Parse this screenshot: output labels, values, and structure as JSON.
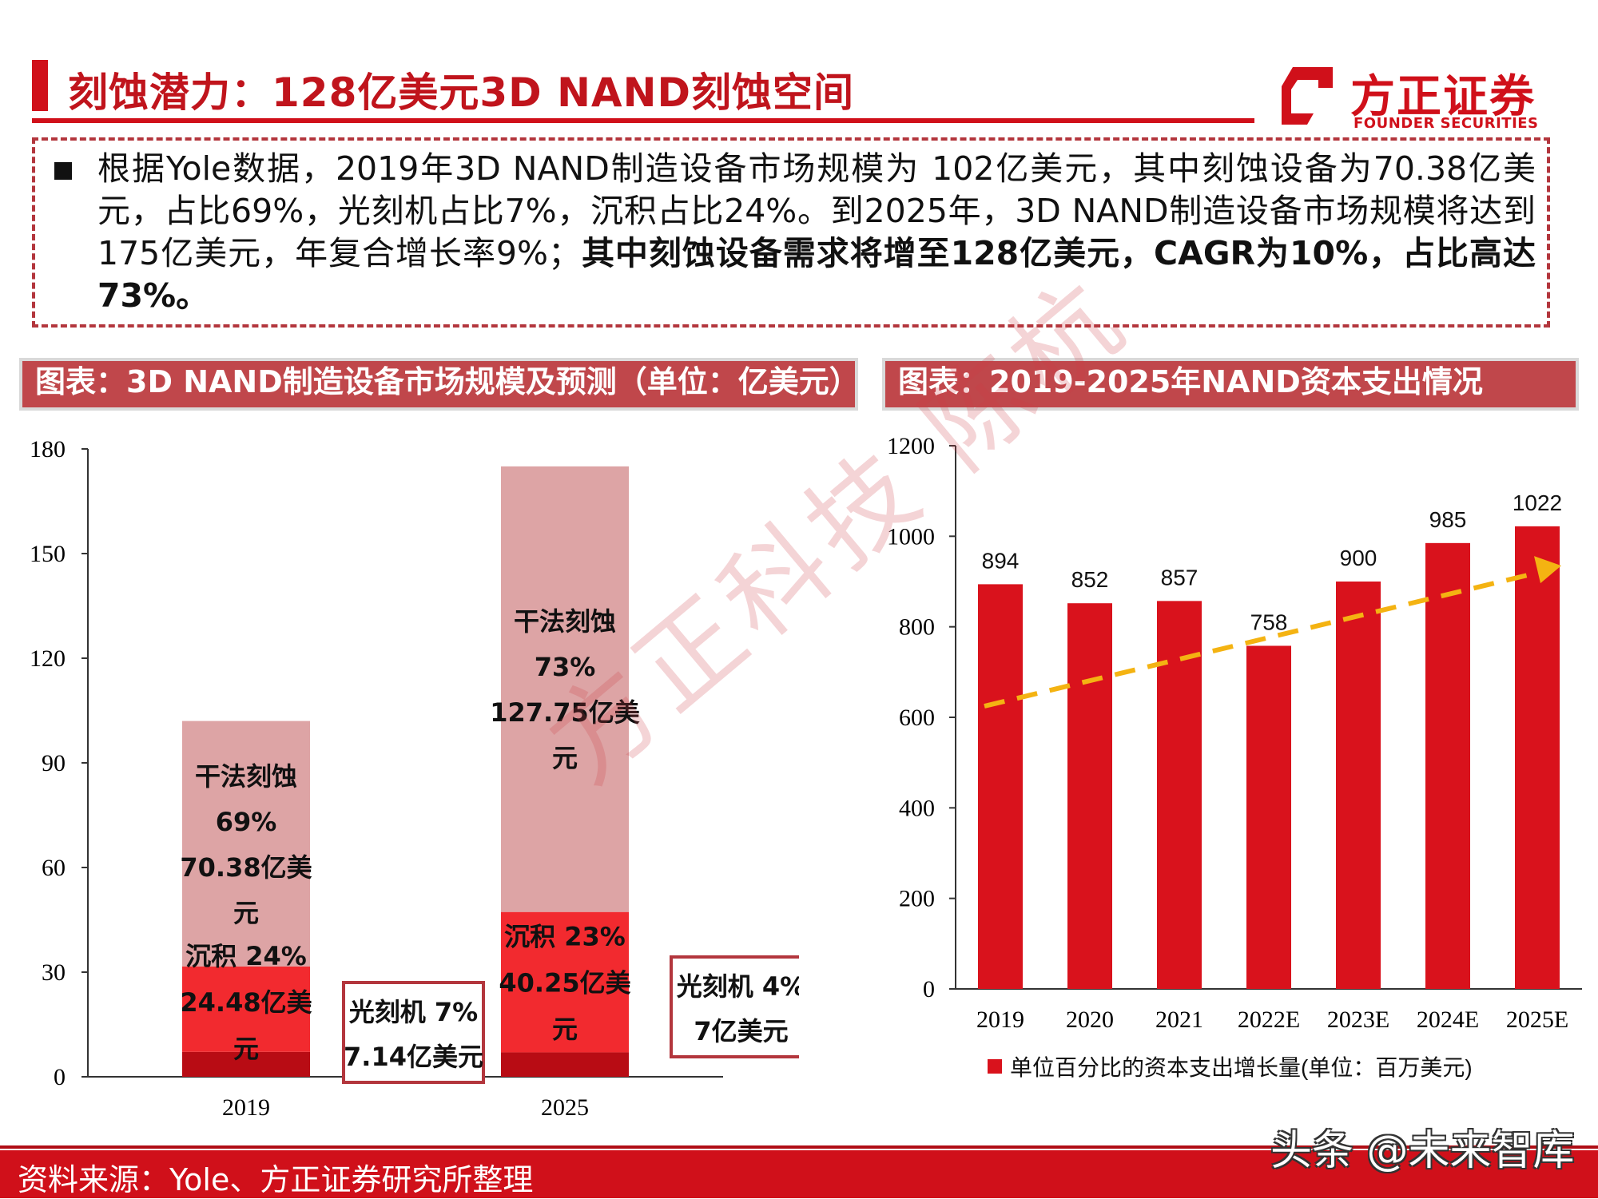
{
  "header": {
    "title": "刻蚀潜力：128亿美元3D NAND刻蚀空间",
    "logo_cn": "方正证券",
    "logo_en": "FOUNDER SECURITIES"
  },
  "summary": {
    "normal": "根据Yole数据，2019年3D NAND制造设备市场规模为 102亿美元，其中刻蚀设备为70.38亿美元，占比69%，光刻机占比7%，沉积占比24%。到2025年，3D NAND制造设备市场规模将达到175亿美元，年复合增长率9%；",
    "bold": "其中刻蚀设备需求将增至128亿美元，CAGR为10%，占比高达73%。"
  },
  "panels": {
    "left_title": "图表：3D NAND制造设备市场规模及预测（单位：亿美元）",
    "right_title": "图表：2019-2025年NAND资本支出情况"
  },
  "chart_data": [
    {
      "type": "bar",
      "stacked": true,
      "categories": [
        "2019",
        "2025"
      ],
      "ylim": [
        0,
        180
      ],
      "yticks": [
        "0",
        "30",
        "60",
        "90",
        "120",
        "150",
        "180"
      ],
      "series": [
        {
          "name": "光刻机",
          "values": [
            7.14,
            7
          ],
          "color": "#b80c14"
        },
        {
          "name": "沉积",
          "values": [
            24.48,
            40.25
          ],
          "color": "#f22a2f"
        },
        {
          "name": "干法刻蚀",
          "values": [
            70.38,
            127.75
          ],
          "color": "#dda4a5"
        }
      ],
      "segment_labels": {
        "2019": {
          "etch": [
            "干法刻蚀",
            "69%",
            "70.38亿美",
            "元"
          ],
          "depo": [
            "沉积 24%",
            "24.48亿美",
            "元"
          ]
        },
        "2025": {
          "etch": [
            "干法刻蚀",
            "73%",
            "127.75亿美",
            "元"
          ],
          "depo": [
            "沉积 23%",
            "40.25亿美",
            "元"
          ]
        }
      },
      "litho_boxes": [
        {
          "lines": [
            "光刻机 7%",
            "7.14亿美元"
          ]
        },
        {
          "lines": [
            "光刻机 4%",
            "7亿美元"
          ]
        }
      ],
      "grid": false
    },
    {
      "type": "bar",
      "categories": [
        "2019",
        "2020",
        "2021",
        "2022E",
        "2023E",
        "2024E",
        "2025E"
      ],
      "values": [
        894,
        852,
        857,
        758,
        900,
        985,
        1022
      ],
      "ylim": [
        0,
        1200
      ],
      "yticks": [
        "0",
        "200",
        "400",
        "600",
        "800",
        "1000",
        "1200"
      ],
      "legend": "单位百分比的资本支出增长量(单位：百万美元)",
      "legend_position": "bottom",
      "bar_color": "#d9121c",
      "trend_arrow": {
        "color": "#f4b312",
        "style": "dashed"
      },
      "grid": false
    }
  ],
  "footer": {
    "source": "资料来源：Yole、方正证券研究所整理",
    "credit": "头条 @未来智库"
  },
  "watermark": "方正科技 陈杭"
}
